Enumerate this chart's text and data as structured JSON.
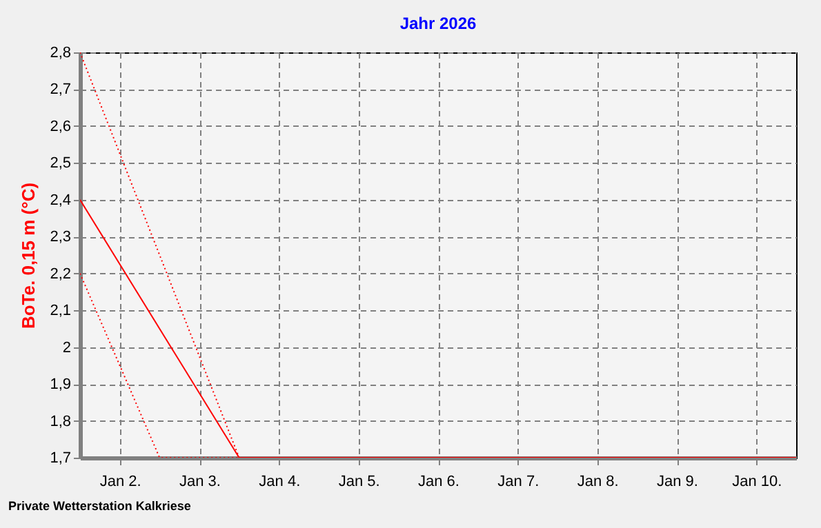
{
  "chart_data": {
    "type": "line",
    "title": "Jahr 2026",
    "ylabel": "BoTe. 0,15 m (°C)",
    "series": [
      {
        "color": "#ff0000",
        "line_style": "dotted",
        "x": [
          "2026-01-01T12:00",
          "2026-01-03T12:00"
        ],
        "values": [
          2.8,
          1.7
        ]
      },
      {
        "color": "#ff0000",
        "line_style": "dotted",
        "x": [
          "2026-01-01T12:00",
          "2026-01-02T12:00",
          "2026-01-03T12:00"
        ],
        "values": [
          2.2,
          1.7,
          1.7
        ]
      },
      {
        "color": "#ff0000",
        "line_style": "solid",
        "x": [
          "2026-01-01T12:00",
          "2026-01-03T12:00",
          "2026-01-10T12:00"
        ],
        "values": [
          2.4,
          1.7,
          1.7
        ]
      }
    ],
    "xlim": [
      "2026-01-01T12:00",
      "2026-01-10T12:00"
    ],
    "xticks": [
      {
        "value": "2026-01-02",
        "label": "Jan 2."
      },
      {
        "value": "2026-01-03",
        "label": "Jan 3."
      },
      {
        "value": "2026-01-04",
        "label": "Jan 4."
      },
      {
        "value": "2026-01-05",
        "label": "Jan 5."
      },
      {
        "value": "2026-01-06",
        "label": "Jan 6."
      },
      {
        "value": "2026-01-07",
        "label": "Jan 7."
      },
      {
        "value": "2026-01-08",
        "label": "Jan 8."
      },
      {
        "value": "2026-01-09",
        "label": "Jan 9."
      },
      {
        "value": "2026-01-10",
        "label": "Jan 10."
      }
    ],
    "ylim": [
      1.7,
      2.8
    ],
    "yticks": [
      {
        "value": 1.7,
        "label": "1,7"
      },
      {
        "value": 1.8,
        "label": "1,8"
      },
      {
        "value": 1.9,
        "label": "1,9"
      },
      {
        "value": 2,
        "label": "2"
      },
      {
        "value": 2.1,
        "label": "2,1"
      },
      {
        "value": 2.2,
        "label": "2,2"
      },
      {
        "value": 2.3,
        "label": "2,3"
      },
      {
        "value": 2.4,
        "label": "2,4"
      },
      {
        "value": 2.5,
        "label": "2,5"
      },
      {
        "value": 2.6,
        "label": "2,6"
      },
      {
        "value": 2.7,
        "label": "2,7"
      },
      {
        "value": 2.8,
        "label": "2,8"
      }
    ],
    "grid": true,
    "annotations": [
      "Private Wetterstation Kalkriese"
    ]
  }
}
